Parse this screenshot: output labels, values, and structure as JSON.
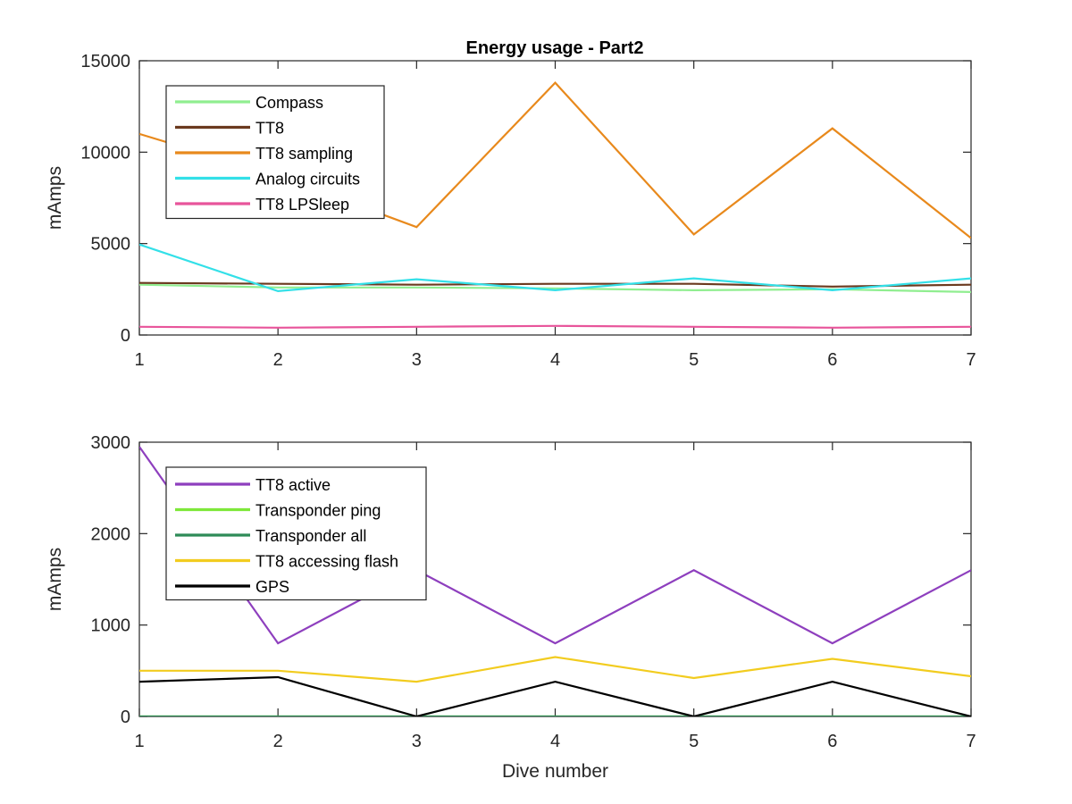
{
  "chart_data": [
    {
      "type": "line",
      "title": "Energy usage - Part2",
      "xlabel": "",
      "ylabel": "mAmps",
      "x": [
        1,
        2,
        3,
        4,
        5,
        6,
        7
      ],
      "xlim": [
        1,
        7
      ],
      "ylim": [
        0,
        15000
      ],
      "yticks": [
        0,
        5000,
        10000,
        15000
      ],
      "ytick_labels": [
        "0",
        "5000",
        "10000",
        "15000"
      ],
      "xtick_labels": [
        "1",
        "2",
        "3",
        "4",
        "5",
        "6",
        "7"
      ],
      "grid": false,
      "legend_position": "top-left",
      "series": [
        {
          "name": "Compass",
          "color": "#90ee90",
          "values": [
            2750,
            2600,
            2600,
            2550,
            2450,
            2500,
            2350
          ]
        },
        {
          "name": "TT8",
          "color": "#6b3a1f",
          "values": [
            2850,
            2800,
            2750,
            2800,
            2800,
            2650,
            2750
          ]
        },
        {
          "name": "TT8 sampling",
          "color": "#e8891c",
          "values": [
            11000,
            8700,
            5900,
            13800,
            5500,
            11300,
            5300
          ]
        },
        {
          "name": "Analog circuits",
          "color": "#33e0e8",
          "values": [
            4950,
            2400,
            3050,
            2450,
            3100,
            2450,
            3100
          ]
        },
        {
          "name": "TT8 LPSleep",
          "color": "#e8559b",
          "values": [
            450,
            400,
            450,
            500,
            450,
            400,
            450
          ]
        }
      ]
    },
    {
      "type": "line",
      "title": "",
      "xlabel": "Dive number",
      "ylabel": "mAmps",
      "x": [
        1,
        2,
        3,
        4,
        5,
        6,
        7
      ],
      "xlim": [
        1,
        7
      ],
      "ylim": [
        0,
        3000
      ],
      "yticks": [
        0,
        1000,
        2000,
        3000
      ],
      "ytick_labels": [
        "0",
        "1000",
        "2000",
        "3000"
      ],
      "xtick_labels": [
        "1",
        "2",
        "3",
        "4",
        "5",
        "6",
        "7"
      ],
      "grid": false,
      "legend_position": "top-left",
      "series": [
        {
          "name": "TT8 active",
          "color": "#8e3fbe",
          "values": [
            2950,
            800,
            1600,
            800,
            1600,
            800,
            1600
          ]
        },
        {
          "name": "Transponder ping",
          "color": "#7ee83a",
          "values": [
            0,
            0,
            0,
            0,
            0,
            0,
            0
          ]
        },
        {
          "name": "Transponder all",
          "color": "#2e8b57",
          "values": [
            0,
            0,
            0,
            0,
            0,
            0,
            0
          ]
        },
        {
          "name": "TT8 accessing flash",
          "color": "#f2cc1f",
          "values": [
            500,
            500,
            380,
            650,
            420,
            630,
            440
          ]
        },
        {
          "name": "GPS",
          "color": "#000000",
          "values": [
            380,
            430,
            0,
            380,
            0,
            380,
            0
          ]
        }
      ]
    }
  ]
}
